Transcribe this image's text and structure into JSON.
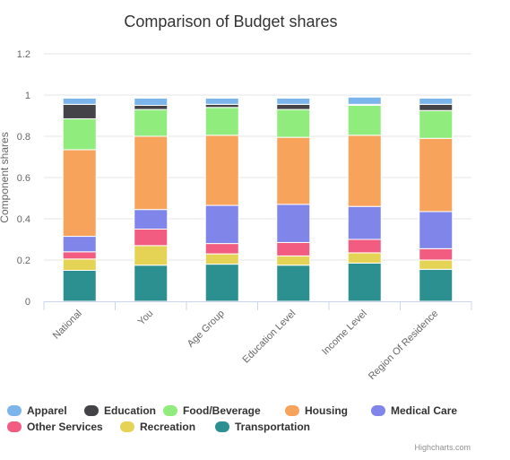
{
  "chart_data": {
    "type": "bar",
    "stacked": true,
    "title": "Comparison of Budget shares",
    "ylabel": "Component shares",
    "xlabel": "",
    "ylim": [
      0,
      1.2
    ],
    "yticks": [
      0,
      0.2,
      0.4,
      0.6,
      0.8,
      1,
      1.2
    ],
    "grid": true,
    "legend_position": "bottom",
    "categories": [
      "National",
      "You",
      "Age Group",
      "Education Level",
      "Income Level",
      "Region Of Residence"
    ],
    "series": [
      {
        "name": "Apparel",
        "color": "#7cb5ec",
        "values": [
          0.03,
          0.035,
          0.03,
          0.03,
          0.035,
          0.03
        ]
      },
      {
        "name": "Education",
        "color": "#434348",
        "values": [
          0.07,
          0.02,
          0.015,
          0.025,
          0.005,
          0.03
        ]
      },
      {
        "name": "Food/Beverage",
        "color": "#90ed7d",
        "values": [
          0.15,
          0.13,
          0.135,
          0.135,
          0.145,
          0.135
        ]
      },
      {
        "name": "Housing",
        "color": "#f7a35c",
        "values": [
          0.42,
          0.355,
          0.34,
          0.325,
          0.345,
          0.355
        ]
      },
      {
        "name": "Medical Care",
        "color": "#8085e9",
        "values": [
          0.075,
          0.095,
          0.185,
          0.185,
          0.16,
          0.18
        ]
      },
      {
        "name": "Other Services",
        "color": "#f15c80",
        "values": [
          0.035,
          0.08,
          0.05,
          0.065,
          0.065,
          0.055
        ]
      },
      {
        "name": "Recreation",
        "color": "#e4d354",
        "values": [
          0.055,
          0.095,
          0.05,
          0.045,
          0.05,
          0.045
        ]
      },
      {
        "name": "Transportation",
        "color": "#2b908f",
        "values": [
          0.15,
          0.175,
          0.18,
          0.175,
          0.185,
          0.155
        ]
      }
    ]
  },
  "credits": "Highcharts.com"
}
